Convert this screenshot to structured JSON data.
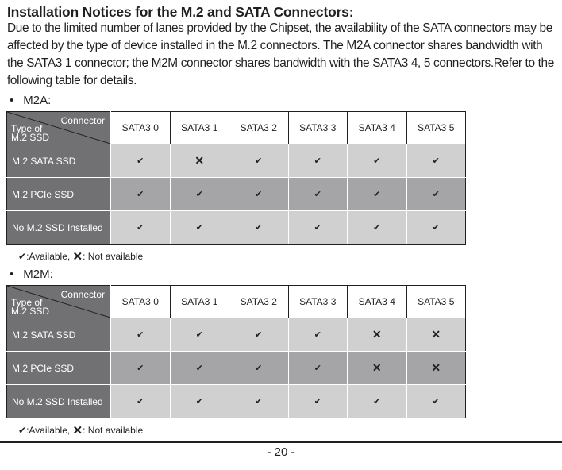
{
  "heading": "Installation Notices for the M.2 and SATA Connectors:",
  "intro": "Due to the limited number of lanes provided by the Chipset, the availability of the SATA connectors may be affected by the type of device installed in the M.2 connectors. The M2A connector shares bandwidth with the SATA3 1 connector; the M2M connector shares bandwidth with the SATA3 4, 5 connectors.Refer to the following table for details.",
  "bullet_symbol": "•",
  "columns": [
    "SATA3 0",
    "SATA3 1",
    "SATA3 2",
    "SATA3 3",
    "SATA3 4",
    "SATA3 5"
  ],
  "corner": {
    "connector": "Connector",
    "type_line1": "Type of",
    "type_line2": "M.2 SSD"
  },
  "legend": {
    "available_symbol": "✔",
    "available_text": ":Available, ",
    "unavailable_symbol": "✕",
    "unavailable_text": ": Not available"
  },
  "tables": [
    {
      "title": "M2A:",
      "rows": [
        {
          "label": "M.2 SATA SSD",
          "cells": [
            "✔",
            "✕",
            "✔",
            "✔",
            "✔",
            "✔"
          ]
        },
        {
          "label": "M.2 PCIe SSD",
          "cells": [
            "✔",
            "✔",
            "✔",
            "✔",
            "✔",
            "✔"
          ]
        },
        {
          "label": "No M.2 SSD Installed",
          "cells": [
            "✔",
            "✔",
            "✔",
            "✔",
            "✔",
            "✔"
          ]
        }
      ]
    },
    {
      "title": "M2M:",
      "rows": [
        {
          "label": "M.2 SATA SSD",
          "cells": [
            "✔",
            "✔",
            "✔",
            "✔",
            "✕",
            "✕"
          ]
        },
        {
          "label": "M.2 PCIe SSD",
          "cells": [
            "✔",
            "✔",
            "✔",
            "✔",
            "✕",
            "✕"
          ]
        },
        {
          "label": "No M.2 SSD Installed",
          "cells": [
            "✔",
            "✔",
            "✔",
            "✔",
            "✔",
            "✔"
          ]
        }
      ]
    }
  ],
  "page_number": "- 20 -"
}
